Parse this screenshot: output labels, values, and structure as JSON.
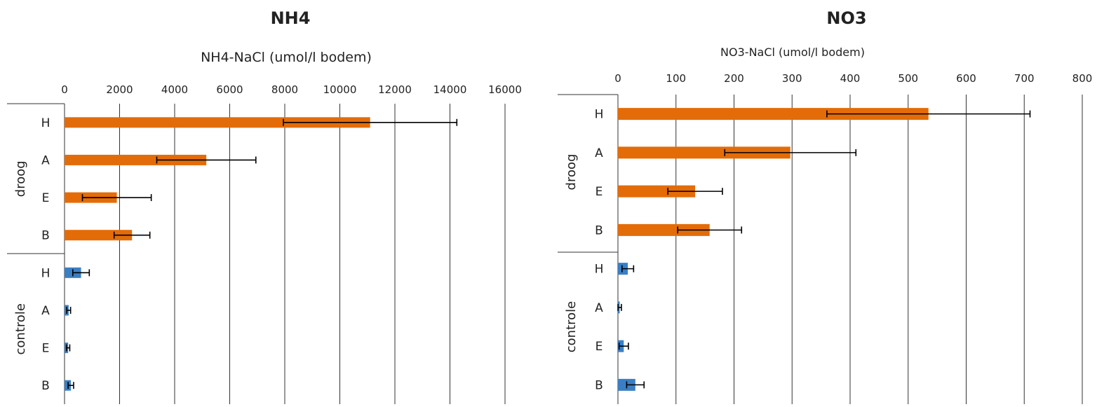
{
  "chart_data": [
    {
      "type": "bar",
      "orientation": "horizontal",
      "title": "NH4",
      "xlabel": "NH4-NaCl (umol/l bodem)",
      "axis_position": "top",
      "xlim": [
        0,
        16000
      ],
      "xticks": [
        "0",
        "2000",
        "4000",
        "6000",
        "8000",
        "10000",
        "12000",
        "14000",
        "16000"
      ],
      "grid": true,
      "groups": [
        {
          "name": "droog",
          "color": "#E36C09",
          "categories": [
            "H",
            "A",
            "E",
            "B"
          ],
          "values": [
            11100,
            5150,
            1900,
            2450
          ],
          "errors": [
            3150,
            1800,
            1250,
            650
          ]
        },
        {
          "name": "controle",
          "color": "#3A7FC4",
          "categories": [
            "H",
            "A",
            "E",
            "B"
          ],
          "values": [
            600,
            150,
            130,
            230
          ],
          "errors": [
            300,
            70,
            60,
            100
          ]
        }
      ]
    },
    {
      "type": "bar",
      "orientation": "horizontal",
      "title": "NO3",
      "xlabel": "NO3-NaCl (umol/l bodem)",
      "axis_position": "top",
      "xlim": [
        0,
        800
      ],
      "xticks": [
        "0",
        "100",
        "200",
        "300",
        "400",
        "500",
        "600",
        "700",
        "800"
      ],
      "grid": true,
      "groups": [
        {
          "name": "droog",
          "color": "#E36C09",
          "categories": [
            "H",
            "A",
            "E",
            "B"
          ],
          "values": [
            535,
            297,
            133,
            158
          ],
          "errors": [
            175,
            113,
            47,
            55
          ]
        },
        {
          "name": "controle",
          "color": "#3A7FC4",
          "categories": [
            "H",
            "A",
            "E",
            "B"
          ],
          "values": [
            17,
            3,
            10,
            30
          ],
          "errors": [
            10,
            3,
            8,
            15
          ]
        }
      ]
    }
  ]
}
